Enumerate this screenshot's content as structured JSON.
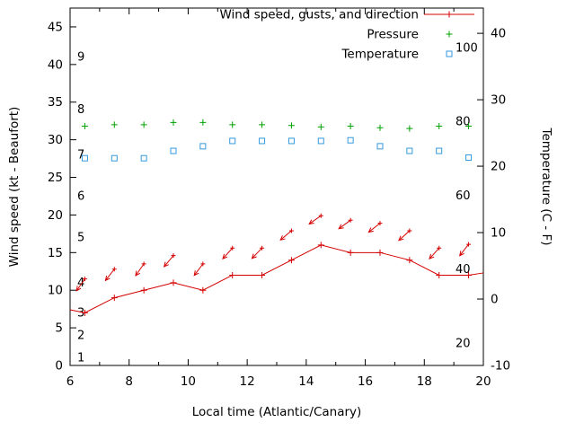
{
  "window": {
    "background": "#ffffff"
  },
  "chart_data": {
    "type": "line",
    "title": "",
    "xlabel": "Local time (Atlantic/Canary)",
    "ylabel_left": "Wind speed (kt - Beaufort)",
    "ylabel_right": "Temperature (C - F)",
    "x_range": [
      6,
      20
    ],
    "y_left_range": [
      0,
      47.5
    ],
    "y_right_range": [
      -10,
      43.8
    ],
    "x_ticks": [
      6,
      8,
      10,
      12,
      14,
      16,
      18,
      20
    ],
    "x_minor_ticks": [
      7,
      9,
      11,
      13,
      15,
      17,
      19
    ],
    "y_left_ticks": [
      0,
      5,
      10,
      15,
      20,
      25,
      30,
      35,
      40,
      45
    ],
    "y_right_ticks": [
      -10,
      0,
      10,
      20,
      30,
      40
    ],
    "beaufort_labels": [
      {
        "label": "1",
        "kt": 1
      },
      {
        "label": "2",
        "kt": 4
      },
      {
        "label": "3",
        "kt": 7
      },
      {
        "label": "4",
        "kt": 11
      },
      {
        "label": "5",
        "kt": 17
      },
      {
        "label": "6",
        "kt": 22.5
      },
      {
        "label": "7",
        "kt": 28
      },
      {
        "label": "8",
        "kt": 34
      },
      {
        "label": "9",
        "kt": 41
      }
    ],
    "fahrenheit_labels": [
      {
        "label": "20",
        "f": 20
      },
      {
        "label": "40",
        "f": 40
      },
      {
        "label": "60",
        "f": 60
      },
      {
        "label": "80",
        "f": 80
      },
      {
        "label": "100",
        "f": 100
      }
    ],
    "legend": [
      {
        "label": "Wind speed, gusts, and direction",
        "color": "#d40000",
        "style": "line-plus"
      },
      {
        "label": "Pressure",
        "color": "#00a000",
        "style": "plus"
      },
      {
        "label": "Temperature",
        "color": "#3399dd",
        "style": "square"
      }
    ],
    "series": [
      {
        "name": "wind_speed",
        "axis": "left",
        "color": "#d40000",
        "marker": "plus",
        "x": [
          6.0,
          6.5,
          7.5,
          8.5,
          9.5,
          10.5,
          11.5,
          12.5,
          13.5,
          14.5,
          15.5,
          16.5,
          17.5,
          18.5,
          19.5,
          20.0
        ],
        "y": [
          7.4,
          7.0,
          9.0,
          10.0,
          11.0,
          10.0,
          12.0,
          12.0,
          14.0,
          16.0,
          15.0,
          15.0,
          14.0,
          12.0,
          12.0,
          12.3
        ]
      },
      {
        "name": "wind_gusts",
        "axis": "left",
        "color": "#d40000",
        "marker": "arrow",
        "x": [
          6.5,
          7.5,
          8.5,
          9.5,
          10.5,
          11.5,
          12.5,
          13.5,
          14.5,
          15.5,
          16.5,
          17.5,
          18.5,
          19.5
        ],
        "y": [
          11.5,
          12.8,
          13.5,
          14.6,
          13.5,
          15.6,
          15.6,
          17.9,
          19.9,
          19.3,
          18.9,
          17.9,
          15.6,
          16.1
        ],
        "arrow_angles_deg": [
          235,
          232,
          235,
          230,
          233,
          228,
          226,
          220,
          215,
          216,
          218,
          222,
          228,
          232
        ]
      },
      {
        "name": "pressure",
        "axis": "left",
        "color": "#00a000",
        "marker": "plus",
        "x": [
          6.5,
          7.5,
          8.5,
          9.5,
          10.5,
          11.5,
          12.5,
          13.5,
          14.5,
          15.5,
          16.5,
          17.5,
          18.5,
          19.5
        ],
        "y": [
          31.8,
          32.0,
          32.0,
          32.3,
          32.3,
          32.0,
          32.0,
          31.9,
          31.7,
          31.8,
          31.6,
          31.5,
          31.8,
          31.8
        ]
      },
      {
        "name": "temperature_c",
        "axis": "right",
        "color": "#3399dd",
        "marker": "open-square",
        "x": [
          6.5,
          7.5,
          8.5,
          9.5,
          10.5,
          11.5,
          12.5,
          13.5,
          14.5,
          15.5,
          16.5,
          17.5,
          18.5,
          19.5
        ],
        "y": [
          21.2,
          21.2,
          21.2,
          22.3,
          23.0,
          23.8,
          23.8,
          23.8,
          23.8,
          23.9,
          23.0,
          22.3,
          22.3,
          21.3
        ]
      }
    ]
  }
}
